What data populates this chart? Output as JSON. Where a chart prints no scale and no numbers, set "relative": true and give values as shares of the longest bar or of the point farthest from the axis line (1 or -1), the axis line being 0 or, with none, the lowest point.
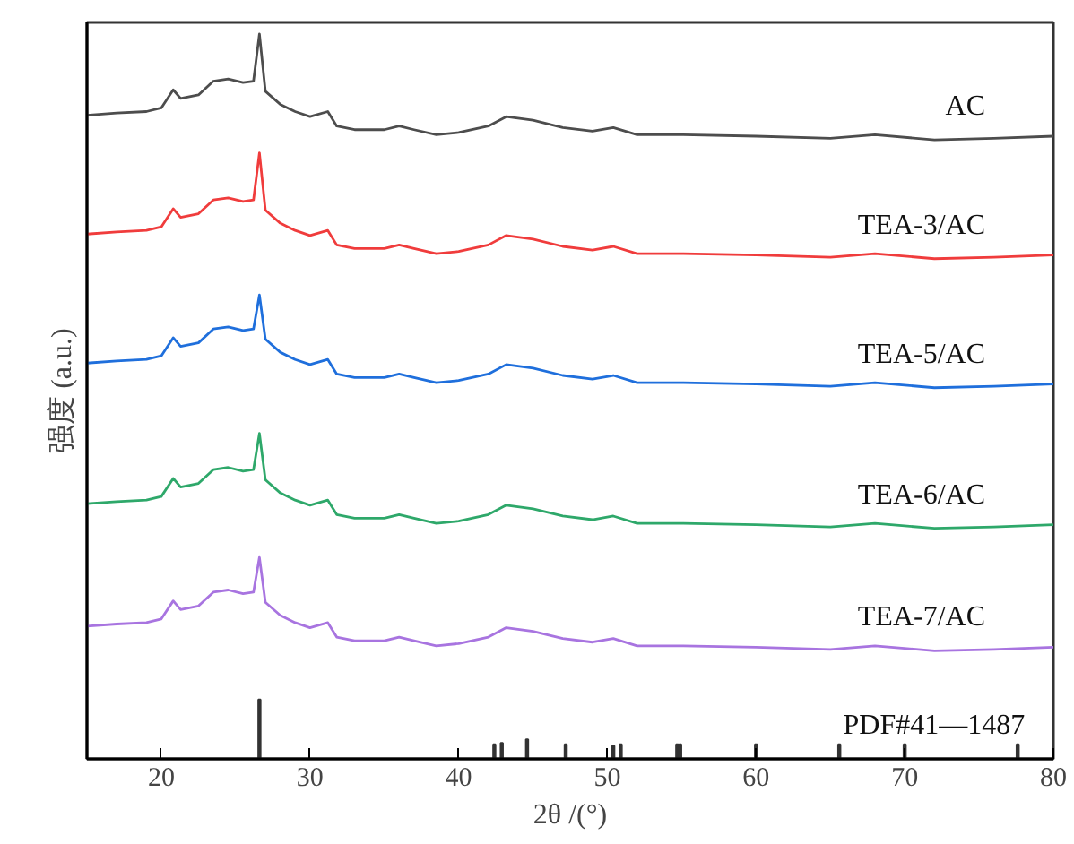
{
  "chart_data": {
    "type": "line",
    "relative": true,
    "xlabel": "2θ /(°)",
    "ylabel": "强度 (a.u.)",
    "x": [
      15,
      17,
      19,
      20,
      20.8,
      21.3,
      22.5,
      23.5,
      24.5,
      25.5,
      26.2,
      26.6,
      27,
      28,
      29,
      30,
      31.2,
      31.8,
      33,
      35,
      36,
      37,
      38.5,
      40,
      42,
      43.2,
      45,
      47,
      49,
      50.4,
      52,
      55,
      60,
      65,
      68,
      72,
      76,
      80
    ],
    "xlim": [
      15,
      80
    ],
    "xticks": [
      20,
      30,
      40,
      50,
      60,
      70,
      80
    ],
    "tick_labels": "x",
    "grid": false,
    "marker": "none",
    "line_style": "solid",
    "series": [
      {
        "name": "AC",
        "color": "#4d4d4d",
        "values": [
          0.888,
          0.891,
          0.893,
          0.898,
          0.923,
          0.911,
          0.916,
          0.935,
          0.938,
          0.933,
          0.935,
          1.0,
          0.921,
          0.903,
          0.893,
          0.886,
          0.893,
          0.873,
          0.868,
          0.868,
          0.873,
          0.868,
          0.861,
          0.864,
          0.873,
          0.886,
          0.881,
          0.871,
          0.866,
          0.871,
          0.861,
          0.861,
          0.859,
          0.856,
          0.861,
          0.854,
          0.856,
          0.859
        ]
      },
      {
        "name": "TEA-3/AC",
        "color": "#f03c3c",
        "values": [
          0.724,
          0.727,
          0.729,
          0.734,
          0.759,
          0.747,
          0.752,
          0.771,
          0.774,
          0.769,
          0.771,
          0.836,
          0.757,
          0.739,
          0.729,
          0.722,
          0.729,
          0.709,
          0.704,
          0.704,
          0.709,
          0.704,
          0.697,
          0.7,
          0.709,
          0.722,
          0.717,
          0.707,
          0.702,
          0.707,
          0.697,
          0.697,
          0.695,
          0.692,
          0.697,
          0.69,
          0.692,
          0.695
        ]
      },
      {
        "name": "TEA-5/AC",
        "color": "#1f6fdc",
        "values": [
          0.546,
          0.549,
          0.551,
          0.556,
          0.581,
          0.569,
          0.574,
          0.593,
          0.596,
          0.591,
          0.593,
          0.64,
          0.579,
          0.561,
          0.551,
          0.544,
          0.551,
          0.531,
          0.526,
          0.526,
          0.531,
          0.526,
          0.519,
          0.522,
          0.531,
          0.544,
          0.539,
          0.529,
          0.524,
          0.529,
          0.519,
          0.519,
          0.517,
          0.514,
          0.519,
          0.512,
          0.514,
          0.517
        ]
      },
      {
        "name": "TEA-6/AC",
        "color": "#2ea86a",
        "values": [
          0.352,
          0.355,
          0.357,
          0.362,
          0.387,
          0.375,
          0.38,
          0.399,
          0.402,
          0.397,
          0.399,
          0.449,
          0.385,
          0.367,
          0.357,
          0.35,
          0.357,
          0.337,
          0.332,
          0.332,
          0.337,
          0.332,
          0.325,
          0.328,
          0.337,
          0.35,
          0.345,
          0.335,
          0.33,
          0.335,
          0.325,
          0.325,
          0.323,
          0.32,
          0.325,
          0.318,
          0.32,
          0.323
        ]
      },
      {
        "name": "TEA-7/AC",
        "color": "#a874e0",
        "values": [
          0.183,
          0.186,
          0.188,
          0.193,
          0.218,
          0.206,
          0.211,
          0.23,
          0.233,
          0.228,
          0.23,
          0.278,
          0.216,
          0.198,
          0.188,
          0.181,
          0.188,
          0.168,
          0.163,
          0.163,
          0.168,
          0.163,
          0.156,
          0.159,
          0.168,
          0.181,
          0.176,
          0.166,
          0.161,
          0.166,
          0.156,
          0.156,
          0.154,
          0.151,
          0.156,
          0.149,
          0.151,
          0.154
        ]
      },
      {
        "name": "PDF#41—1487",
        "type": "bar",
        "color": "#333333",
        "x": [
          26.6,
          42.4,
          42.9,
          44.6,
          47.2,
          50.4,
          50.9,
          54.7,
          54.9,
          60.0,
          65.6,
          70.0,
          77.6
        ],
        "values": [
          0.082,
          0.02,
          0.022,
          0.027,
          0.02,
          0.018,
          0.02,
          0.02,
          0.02,
          0.02,
          0.02,
          0.02,
          0.02
        ]
      }
    ]
  }
}
